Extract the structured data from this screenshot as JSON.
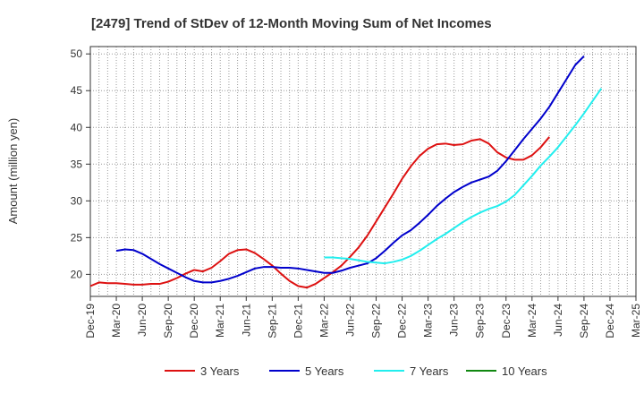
{
  "chart_data": {
    "type": "line",
    "title": "[2479]  Trend of StDev of 12-Month Moving Sum of Net Incomes",
    "ylabel": "Amount (million yen)",
    "xlabel": "",
    "ylim": [
      17,
      51
    ],
    "yticks": [
      20,
      25,
      30,
      35,
      40,
      45,
      50
    ],
    "x_tick_labels": [
      "Dec-19",
      "Mar-20",
      "Jun-20",
      "Sep-20",
      "Dec-20",
      "Mar-21",
      "Jun-21",
      "Sep-21",
      "Dec-21",
      "Mar-22",
      "Jun-22",
      "Sep-22",
      "Dec-22",
      "Mar-23",
      "Jun-23",
      "Sep-23",
      "Dec-23",
      "Mar-24",
      "Jun-24",
      "Sep-24",
      "Dec-24",
      "Mar-25"
    ],
    "grid": true,
    "legend_position": "bottom",
    "series": [
      {
        "name": "3 Years",
        "color": "#dd1111",
        "start": "Dec-19",
        "values": [
          18.4,
          18.9,
          18.8,
          18.8,
          18.7,
          18.6,
          18.6,
          18.7,
          18.7,
          19.0,
          19.5,
          20.1,
          20.6,
          20.4,
          20.9,
          21.8,
          22.8,
          23.3,
          23.4,
          22.9,
          22.1,
          21.2,
          20.1,
          19.1,
          18.4,
          18.2,
          18.7,
          19.5,
          20.3,
          21.2,
          22.4,
          23.7,
          25.3,
          27.2,
          29.1,
          31.0,
          33.0,
          34.7,
          36.1,
          37.1,
          37.7,
          37.8,
          37.6,
          37.7,
          38.2,
          38.4,
          37.8,
          36.6,
          35.9,
          35.6,
          35.6,
          36.2,
          37.3,
          38.7
        ]
      },
      {
        "name": "5 Years",
        "color": "#0000cc",
        "start": "Mar-20",
        "values": [
          23.2,
          23.4,
          23.3,
          22.8,
          22.1,
          21.4,
          20.8,
          20.2,
          19.6,
          19.1,
          18.9,
          18.9,
          19.1,
          19.4,
          19.8,
          20.3,
          20.8,
          21.0,
          21.0,
          20.9,
          20.9,
          20.8,
          20.6,
          20.4,
          20.2,
          20.2,
          20.5,
          20.9,
          21.2,
          21.5,
          22.2,
          23.2,
          24.3,
          25.3,
          26.0,
          27.0,
          28.1,
          29.3,
          30.3,
          31.2,
          31.9,
          32.5,
          32.9,
          33.3,
          34.1,
          35.4,
          36.9,
          38.4,
          39.8,
          41.2,
          42.8,
          44.7,
          46.6,
          48.5,
          49.7
        ]
      },
      {
        "name": "7 Years",
        "color": "#22eeee",
        "start": "Mar-22",
        "values": [
          22.3,
          22.3,
          22.2,
          22.1,
          21.9,
          21.7,
          21.6,
          21.5,
          21.7,
          22.0,
          22.5,
          23.2,
          24.0,
          24.8,
          25.5,
          26.3,
          27.1,
          27.8,
          28.4,
          28.9,
          29.3,
          29.9,
          30.8,
          32.1,
          33.4,
          34.8,
          36.0,
          37.3,
          38.8,
          40.3,
          41.9,
          43.6,
          45.3
        ]
      },
      {
        "name": "10 Years",
        "color": "#118811",
        "start": "Dec-24",
        "values": []
      }
    ]
  }
}
